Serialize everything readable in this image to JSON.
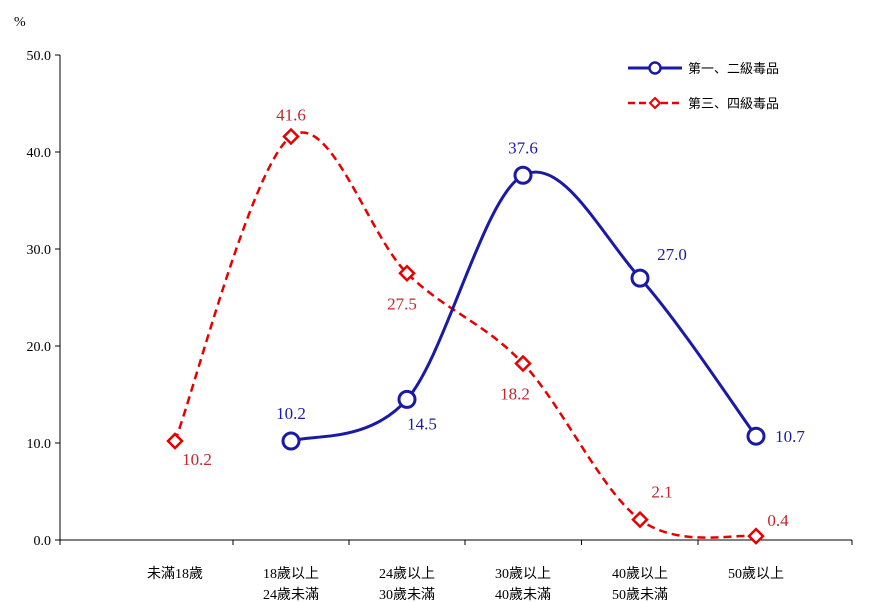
{
  "chart_data": {
    "type": "line",
    "ylabel": "%",
    "ylim": [
      0,
      50
    ],
    "yticks": [
      "0.0",
      "10.0",
      "20.0",
      "30.0",
      "40.0",
      "50.0"
    ],
    "categories": [
      [
        "未滿18歲"
      ],
      [
        "18歲以上",
        "24歲未滿"
      ],
      [
        "24歲以上",
        "30歲未滿"
      ],
      [
        "30歲以上",
        "40歲未滿"
      ],
      [
        "40歲以上",
        "50歲未滿"
      ],
      [
        "50歲以上"
      ]
    ],
    "legend_position": "top-right",
    "grid": false,
    "series": [
      {
        "name": "第一、二級毒品",
        "color": "#1a1aa6",
        "marker": "circle",
        "line_style": "solid",
        "values": [
          null,
          10.2,
          14.5,
          37.6,
          27.0,
          10.7
        ],
        "labels": [
          null,
          "10.2",
          "14.5",
          "37.6",
          "27.0",
          "10.7"
        ]
      },
      {
        "name": "第三、四級毒品",
        "color": "#e60000",
        "label_color": "#c0282d",
        "marker": "diamond",
        "line_style": "dashed",
        "values": [
          10.2,
          41.6,
          27.5,
          18.2,
          2.1,
          0.4
        ],
        "labels": [
          "10.2",
          "41.6",
          "27.5",
          "18.2",
          "2.1",
          "0.4"
        ]
      }
    ]
  }
}
